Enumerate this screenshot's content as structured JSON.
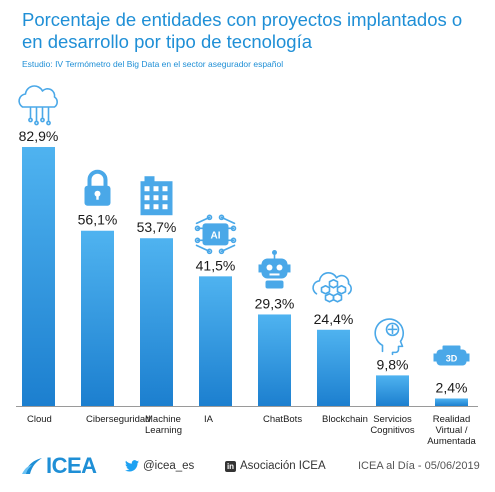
{
  "title": "Porcentaje de entidades con proyectos implantados o en desarrollo por tipo de tecnología",
  "subtitle": "Estudio: IV Termómetro del Big Data en el sector asegurador español",
  "colors": {
    "accent": "#1f8fd6",
    "bar_top": "#4fb3f0",
    "bar_bottom": "#1c7fcf",
    "axis": "#9a9a9a"
  },
  "chart_data": {
    "type": "bar",
    "title": "Porcentaje de entidades con proyectos implantados o en desarrollo por tipo de tecnología",
    "categories": [
      "Cloud",
      "Ciberseguridad",
      "Machine Learning",
      "IA",
      "ChatBots",
      "Blockchain",
      "Servicios Cognitivos",
      "Realidad Virtual / Aumentada"
    ],
    "category_lines": [
      [
        "Cloud"
      ],
      [
        "Ciberseguridad"
      ],
      [
        "Machine",
        "Learning"
      ],
      [
        "IA"
      ],
      [
        "ChatBots"
      ],
      [
        "Blockchain"
      ],
      [
        "Servicios",
        "Cognitivos"
      ],
      [
        "Realidad",
        "Virtual /",
        "Aumentada"
      ]
    ],
    "values": [
      82.9,
      56.1,
      53.7,
      41.5,
      29.3,
      24.4,
      9.8,
      2.4
    ],
    "data_labels": [
      "82,9%",
      "56,1%",
      "53,7%",
      "41,5%",
      "29,3%",
      "24,4%",
      "9,8%",
      "2,4%"
    ],
    "icons": [
      "cloud-icon",
      "padlock-icon",
      "building-circuit-icon",
      "ai-chip-icon",
      "robot-icon",
      "blockchain-cloud-icon",
      "cognitive-head-icon",
      "vr-headset-icon"
    ],
    "ylim": [
      0,
      100
    ],
    "xlabel": "",
    "ylabel": "",
    "grid": false,
    "legend": "none"
  },
  "footer": {
    "logo": "ICEA",
    "twitter": "@icea_es",
    "linkedin_badge": "in",
    "linkedin": "Asociación ICEA",
    "source": "ICEA al Día - 05/06/2019"
  }
}
